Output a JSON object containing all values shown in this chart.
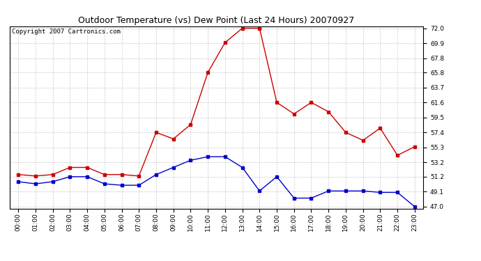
{
  "title": "Outdoor Temperature (vs) Dew Point (Last 24 Hours) 20070927",
  "copyright": "Copyright 2007 Cartronics.com",
  "hours": [
    "00:00",
    "01:00",
    "02:00",
    "03:00",
    "04:00",
    "05:00",
    "06:00",
    "07:00",
    "08:00",
    "09:00",
    "10:00",
    "11:00",
    "12:00",
    "13:00",
    "14:00",
    "15:00",
    "16:00",
    "17:00",
    "18:00",
    "19:00",
    "20:00",
    "21:00",
    "22:00",
    "23:00"
  ],
  "temp_red": [
    51.5,
    51.3,
    51.5,
    52.5,
    52.5,
    51.5,
    51.5,
    51.3,
    57.4,
    56.5,
    58.5,
    65.8,
    70.0,
    72.0,
    72.0,
    61.6,
    60.0,
    61.6,
    60.3,
    57.4,
    56.3,
    58.0,
    54.2,
    55.4
  ],
  "dew_blue": [
    50.5,
    50.2,
    50.5,
    51.2,
    51.2,
    50.2,
    50.0,
    50.0,
    51.5,
    52.5,
    53.5,
    54.0,
    54.0,
    52.5,
    49.2,
    51.2,
    48.2,
    48.2,
    49.2,
    49.2,
    49.2,
    49.0,
    49.0,
    47.0
  ],
  "ylim_min": 47.0,
  "ylim_max": 72.0,
  "yticks": [
    47.0,
    49.1,
    51.2,
    53.2,
    55.3,
    57.4,
    59.5,
    61.6,
    63.7,
    65.8,
    67.8,
    69.9,
    72.0
  ],
  "red_color": "#cc0000",
  "blue_color": "#0000cc",
  "bg_color": "#ffffff",
  "grid_color": "#bbbbbb",
  "title_fontsize": 9,
  "copyright_fontsize": 6.5,
  "tick_fontsize": 6.5
}
